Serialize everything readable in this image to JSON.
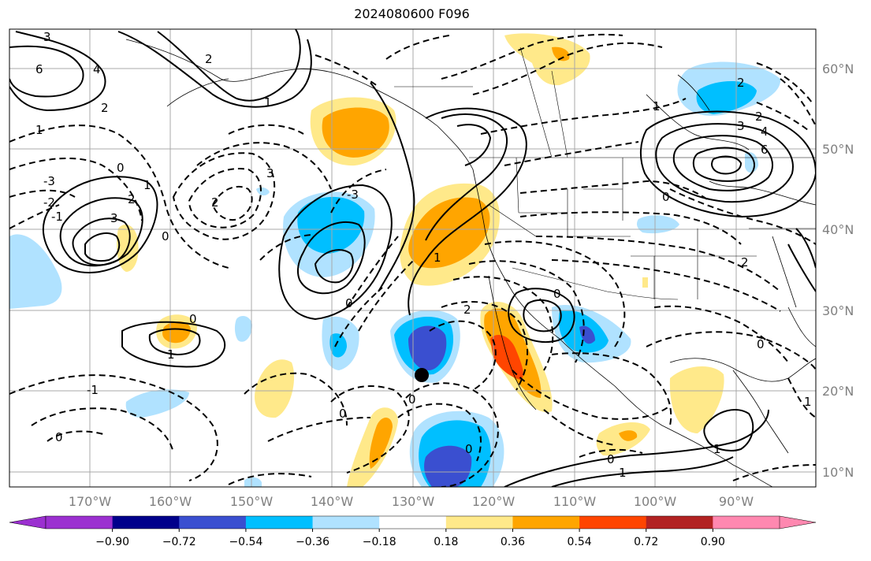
{
  "title": "2024080600 F096",
  "lon_labels": [
    "170°W",
    "160°W",
    "150°W",
    "140°W",
    "130°W",
    "120°W",
    "110°W",
    "100°W",
    "90°W"
  ],
  "lat_labels": [
    "60°N",
    "50°N",
    "40°N",
    "30°N",
    "20°N",
    "10°N"
  ],
  "colorbar": {
    "tick_labels": [
      "−0.90",
      "−0.72",
      "−0.54",
      "−0.36",
      "−0.18",
      "0.18",
      "0.36",
      "0.54",
      "0.72",
      "0.90"
    ],
    "colors": [
      "#9b30d0",
      "#00008b",
      "#3a4fd0",
      "#00bfff",
      "#b0e2ff",
      "#ffffff",
      "#ffe98a",
      "#ffa500",
      "#ff4500",
      "#b22222",
      "#ff88b0"
    ]
  },
  "contour_labels": [
    "3",
    "6",
    "4",
    "2",
    "1",
    "0",
    "-1",
    "-2",
    "-3",
    "3",
    "2",
    "1",
    "0",
    "1",
    "2",
    "3",
    "2",
    "1",
    "0",
    "-1",
    "-3",
    "2",
    "4",
    "6",
    "3",
    "2",
    "1",
    "0",
    "0",
    "2",
    "0",
    "1",
    "1",
    "0",
    "0",
    "1",
    "0",
    "0",
    "2",
    "0",
    "1",
    "0"
  ],
  "storm_marker": "storm-center"
}
